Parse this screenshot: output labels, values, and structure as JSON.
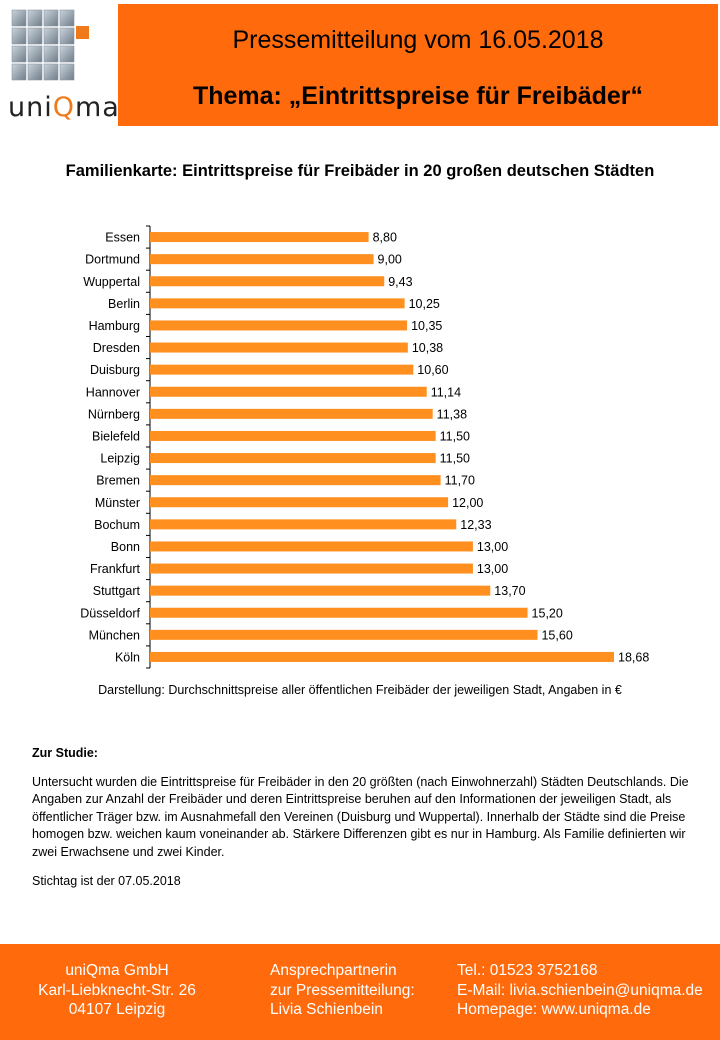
{
  "logo": {
    "text_prefix": "uni",
    "text_q": "Q",
    "text_suffix": "ma"
  },
  "header": {
    "title": "Pressemitteilung vom 16.05.2018",
    "subtitle": "Thema: „Eintrittspreise für Freibäder“"
  },
  "chart_data": {
    "type": "bar",
    "orientation": "horizontal",
    "title": "Familienkarte: Eintrittspreise für Freibäder in 20 großen deutschen Städten",
    "categories": [
      "Essen",
      "Dortmund",
      "Wuppertal",
      "Berlin",
      "Hamburg",
      "Dresden",
      "Duisburg",
      "Hannover",
      "Nürnberg",
      "Bielefeld",
      "Leipzig",
      "Bremen",
      "Münster",
      "Bochum",
      "Bonn",
      "Frankfurt",
      "Stuttgart",
      "Düsseldorf",
      "München",
      "Köln"
    ],
    "values": [
      8.8,
      9.0,
      9.43,
      10.25,
      10.35,
      10.38,
      10.6,
      11.14,
      11.38,
      11.5,
      11.5,
      11.7,
      12.0,
      12.33,
      13.0,
      13.0,
      13.7,
      15.2,
      15.6,
      18.68
    ],
    "value_labels": [
      "8,80",
      "9,00",
      "9,43",
      "10,25",
      "10,35",
      "10,38",
      "10,60",
      "11,14",
      "11,38",
      "11,50",
      "11,50",
      "11,70",
      "12,00",
      "12,33",
      "13,00",
      "13,00",
      "13,70",
      "15,20",
      "15,60",
      "18,68"
    ],
    "xlim": [
      0,
      18.68
    ],
    "grid": false,
    "bar_color": "#ff8f1f",
    "note": "Darstellung: Durchschnittspreise aller öffentlichen Freibäder der jeweiligen Stadt, Angaben in €"
  },
  "study": {
    "heading": "Zur Studie:",
    "body": "Untersucht wurden die Eintrittspreise für Freibäder in den 20 größten (nach Einwohnerzahl) Städten Deutschlands. Die Angaben zur Anzahl der Freibäder und deren Eintrittspreise beruhen auf den Informationen der jeweiligen Stadt, als öffentlicher Träger bzw. im Ausnahmefall den Vereinen (Duisburg und Wuppertal). Innerhalb der Städte sind die Preise homogen bzw. weichen kaum voneinander ab.  Stärkere Differenzen gibt es nur in Hamburg. Als Familie definierten wir zwei Erwachsene und zwei Kinder.",
    "date": "Stichtag ist der 07.05.2018"
  },
  "footer": {
    "company": "uniQma GmbH",
    "street": "Karl-Liebknecht-Str. 26",
    "city": "04107 Leipzig",
    "contact_label1": "Ansprechpartnerin",
    "contact_label2": "zur Pressemitteilung:",
    "contact_name": "Livia Schienbein",
    "phone": "Tel.: 01523 3752168",
    "email": "E-Mail: livia.schienbein@uniqma.de",
    "homepage": "Homepage: www.uniqma.de"
  },
  "colors": {
    "brand_orange": "#ff6a0d",
    "bar_orange": "#ff8f1f",
    "logo_q_orange": "#f07a1a"
  }
}
